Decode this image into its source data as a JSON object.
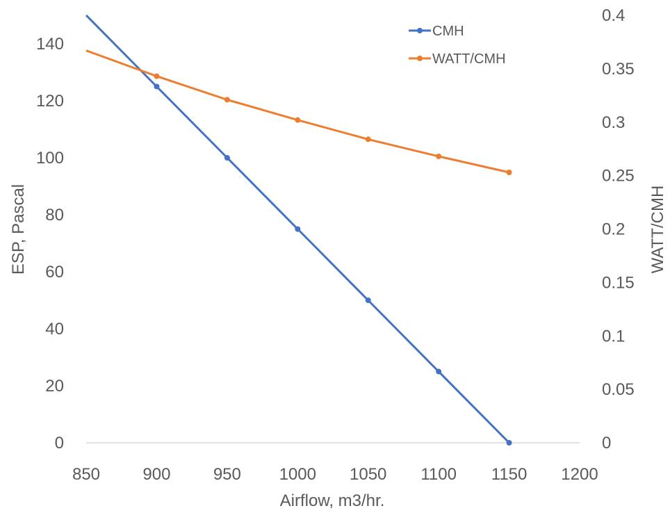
{
  "chart_data": {
    "type": "line",
    "xlabel": "Airflow, m3/hr.",
    "ylabel": "ESP, Pascal",
    "y2label": "WATT/CMH",
    "xlim": [
      850,
      1200
    ],
    "ylim": [
      0,
      150
    ],
    "y2lim": [
      0,
      0.4
    ],
    "x_ticks": [
      "850",
      "900",
      "950",
      "1000",
      "1050",
      "1100",
      "1150",
      "1200"
    ],
    "y_ticks": [
      "0",
      "20",
      "40",
      "60",
      "80",
      "100",
      "120",
      "140"
    ],
    "y2_ticks": [
      "0",
      "0.05",
      "0.1",
      "0.15",
      "0.2",
      "0.25",
      "0.3",
      "0.35",
      "0.4"
    ],
    "grid": false,
    "legend": "top-right",
    "series": [
      {
        "name": "CMH",
        "axis": "left",
        "color": "#4472C4",
        "line_start": [
          850,
          150
        ],
        "x": [
          900,
          950,
          1000,
          1050,
          1100,
          1150
        ],
        "y": [
          125,
          100,
          75,
          50,
          25,
          0
        ]
      },
      {
        "name": "WATT/CMH",
        "axis": "right",
        "color": "#ED7D31",
        "line_start": [
          850,
          0.367
        ],
        "x": [
          900,
          950,
          1000,
          1050,
          1100,
          1150
        ],
        "y": [
          0.343,
          0.321,
          0.302,
          0.284,
          0.268,
          0.253
        ]
      }
    ]
  }
}
